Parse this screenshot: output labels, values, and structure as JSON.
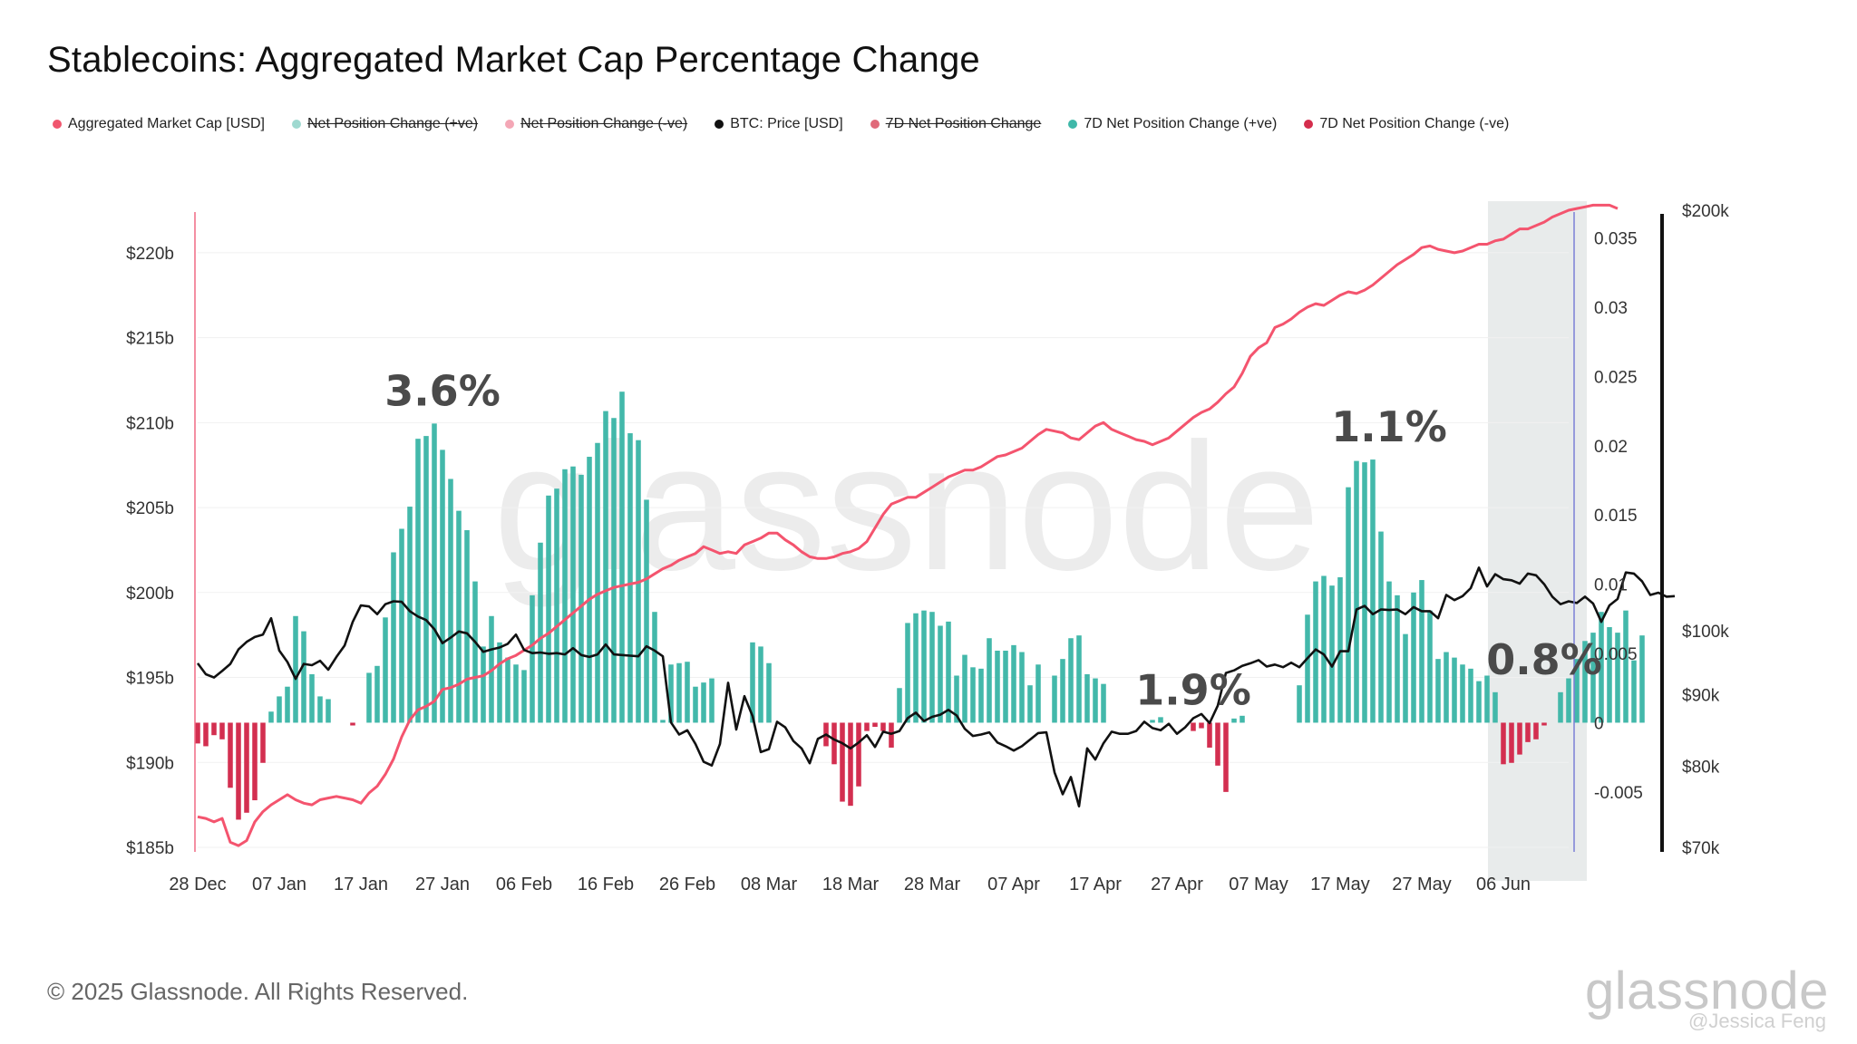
{
  "title": "Stablecoins: Aggregated Market Cap Percentage Change",
  "legend": [
    {
      "label": "Aggregated Market Cap [USD]",
      "color": "#f0566e",
      "active": true
    },
    {
      "label": "Net Position Change (+ve)",
      "color": "#9fd9d0",
      "active": false
    },
    {
      "label": "Net Position Change (-ve)",
      "color": "#f4a7b6",
      "active": false
    },
    {
      "label": "BTC: Price [USD]",
      "color": "#111111",
      "active": true
    },
    {
      "label": "7D Net Position Change",
      "color": "#e06a7a",
      "active": false
    },
    {
      "label": "7D Net Position Change (+ve)",
      "color": "#3fb8a9",
      "active": true
    },
    {
      "label": "7D Net Position Change (-ve)",
      "color": "#d42d4c",
      "active": true
    }
  ],
  "footer": "© 2025 Glassnode. All Rights Reserved.",
  "watermark": "glassnode",
  "brand": "glassnode",
  "credit": "@Jessica Feng",
  "chart_data": {
    "type": "bar",
    "x_ticks": [
      "28 Dec",
      "07 Jan",
      "17 Jan",
      "27 Jan",
      "06 Feb",
      "16 Feb",
      "26 Feb",
      "08 Mar",
      "18 Mar",
      "28 Mar",
      "07 Apr",
      "17 Apr",
      "27 Apr",
      "07 May",
      "17 May",
      "27 May",
      "06 Jun"
    ],
    "x_start": "28 Dec",
    "days": 169,
    "highlight_region": {
      "from": "05 Jun",
      "to": "16 Jun"
    },
    "y_left": {
      "ticks": [
        "$185b",
        "$190b",
        "$195b",
        "$200b",
        "$205b",
        "$210b",
        "$215b",
        "$220b"
      ],
      "range": [
        185,
        222.5
      ],
      "unit": "$b"
    },
    "y_right": {
      "ticks": [
        "0.035",
        "0.03",
        "0.025",
        "0.02",
        "0.015",
        "0.01",
        "0.005",
        "0",
        "-0.005"
      ],
      "range": [
        -0.009,
        0.037
      ]
    },
    "y_btc": {
      "ticks": [
        "$200k",
        "$100k",
        "$90k",
        "$80k",
        "$70k"
      ],
      "range": [
        70000,
        200000
      ],
      "scale": "log"
    },
    "annotations": [
      {
        "text": "3.6%",
        "x": 30
      },
      {
        "text": "1.9%",
        "x": 122
      },
      {
        "text": "1.1%",
        "x": 146
      },
      {
        "text": "0.8%",
        "x": 165
      }
    ],
    "series": [
      {
        "name": "7D Net Position Change",
        "axis": "right",
        "values": [
          -0.0015,
          -0.0017,
          -0.0009,
          -0.0012,
          -0.0047,
          -0.007,
          -0.0065,
          -0.0056,
          -0.0029,
          0.0008,
          0.0019,
          0.0026,
          0.0077,
          0.0066,
          0.0035,
          0.0019,
          0.0017,
          0.0,
          0.0,
          -0.0002,
          0.0,
          0.0036,
          0.0041,
          0.0076,
          0.0123,
          0.014,
          0.0156,
          0.0205,
          0.0207,
          0.0216,
          0.0197,
          0.0176,
          0.0153,
          0.0139,
          0.0102,
          0.0055,
          0.0077,
          0.0058,
          0.0047,
          0.0042,
          0.0038,
          0.0092,
          0.013,
          0.0164,
          0.0169,
          0.0183,
          0.0185,
          0.0179,
          0.0192,
          0.0202,
          0.0225,
          0.022,
          0.0239,
          0.0209,
          0.0204,
          0.0161,
          0.008,
          0.0002,
          0.0042,
          0.0043,
          0.0044,
          0.0026,
          0.0029,
          0.0032,
          0.0,
          0.0,
          0.0,
          0.0,
          0.0058,
          0.0055,
          0.0043,
          0.0,
          0.0,
          0.0,
          0.0,
          0.0,
          0.0,
          -0.0017,
          -0.003,
          -0.0057,
          -0.006,
          -0.0046,
          -0.0006,
          -0.0003,
          -0.0006,
          -0.0018,
          0.0025,
          0.0072,
          0.0079,
          0.0081,
          0.008,
          0.007,
          0.0073,
          0.0034,
          0.0049,
          0.004,
          0.0039,
          0.0061,
          0.0052,
          0.0052,
          0.0056,
          0.0051,
          0.0027,
          0.0042,
          0.0,
          0.0034,
          0.0046,
          0.0061,
          0.0063,
          0.0035,
          0.0032,
          0.0028,
          0.0,
          0.0,
          0.0,
          0.0,
          0.0,
          0.0002,
          0.0004,
          0.0,
          0.0,
          0.0,
          -0.0006,
          -0.0004,
          -0.0018,
          -0.0031,
          -0.005,
          0.0003,
          0.0005,
          0.0,
          0.0,
          0.0,
          0.0,
          0.0,
          0.0,
          0.0027,
          0.0078,
          0.0102,
          0.0106,
          0.0099,
          0.0105,
          0.017,
          0.0189,
          0.0188,
          0.019,
          0.0138,
          0.0102,
          0.0092,
          0.0064,
          0.0094,
          0.0103,
          0.0081,
          0.0046,
          0.0051,
          0.0047,
          0.0042,
          0.0039,
          0.003,
          0.0034,
          0.0022,
          -0.003,
          -0.0029,
          -0.0023,
          -0.0014,
          -0.0012,
          -0.0002,
          0.0,
          0.0022,
          0.0032,
          0.0046,
          0.0059,
          0.0065,
          0.008,
          0.0069,
          0.0065,
          0.0081,
          0.0045,
          0.0063
        ]
      },
      {
        "name": "Aggregated Market Cap [USD]",
        "axis": "left",
        "values": [
          186.8,
          186.7,
          186.5,
          186.7,
          185.3,
          185.1,
          185.4,
          186.5,
          187.1,
          187.5,
          187.8,
          188.1,
          187.8,
          187.6,
          187.5,
          187.8,
          187.9,
          188.0,
          187.9,
          187.8,
          187.6,
          188.2,
          188.6,
          189.3,
          190.2,
          191.5,
          192.5,
          193.1,
          193.3,
          193.6,
          194.3,
          194.4,
          194.6,
          194.9,
          195.0,
          195.1,
          195.4,
          195.8,
          196.1,
          196.3,
          196.6,
          196.9,
          197.3,
          197.6,
          198.0,
          198.4,
          198.8,
          199.2,
          199.6,
          199.9,
          200.1,
          200.3,
          200.4,
          200.5,
          200.6,
          200.8,
          201.1,
          201.4,
          201.6,
          201.9,
          202.1,
          202.3,
          202.7,
          202.5,
          202.3,
          202.4,
          202.3,
          202.8,
          203.0,
          203.2,
          203.5,
          203.5,
          203.1,
          202.8,
          202.4,
          202.1,
          202.0,
          202.0,
          202.1,
          202.3,
          202.4,
          202.6,
          203.0,
          203.8,
          204.6,
          205.2,
          205.4,
          205.6,
          205.6,
          205.9,
          206.2,
          206.5,
          206.8,
          207.0,
          207.2,
          207.2,
          207.4,
          207.7,
          208.0,
          208.1,
          208.3,
          208.5,
          208.9,
          209.3,
          209.6,
          209.5,
          209.4,
          209.1,
          209.0,
          209.4,
          209.8,
          210.0,
          209.6,
          209.4,
          209.2,
          209.0,
          208.9,
          208.7,
          208.9,
          209.1,
          209.5,
          209.9,
          210.3,
          210.6,
          210.8,
          211.2,
          211.7,
          212.1,
          212.9,
          213.9,
          214.4,
          214.7,
          215.6,
          215.8,
          216.1,
          216.5,
          216.8,
          217.0,
          216.9,
          217.2,
          217.5,
          217.7,
          217.6,
          217.8,
          218.1,
          218.5,
          218.9,
          219.3,
          219.6,
          219.9,
          220.3,
          220.4,
          220.2,
          220.1,
          220.0,
          220.1,
          220.3,
          220.5,
          220.5,
          220.7,
          220.8,
          221.1,
          221.4,
          221.4,
          221.6,
          221.8,
          222.1,
          222.3,
          222.5,
          222.6,
          222.7,
          222.8,
          222.8,
          222.8,
          222.6
        ]
      },
      {
        "name": "BTC: Price [USD]",
        "axis": "btc",
        "values": [
          94800,
          93100,
          92600,
          93600,
          94700,
          97000,
          98200,
          99000,
          99400,
          102100,
          96800,
          95000,
          92400,
          94700,
          94500,
          95200,
          93800,
          95800,
          97600,
          101500,
          104300,
          104100,
          102800,
          104500,
          105000,
          104900,
          103300,
          102400,
          101800,
          100300,
          98000,
          98900,
          99900,
          99600,
          98200,
          96600,
          97000,
          97300,
          97900,
          99400,
          96900,
          96400,
          96500,
          96300,
          96400,
          96200,
          97200,
          96100,
          95800,
          96200,
          97800,
          96200,
          96100,
          96000,
          95900,
          97500,
          96800,
          95900,
          86000,
          84300,
          84900,
          83000,
          80600,
          80100,
          83000,
          91800,
          85000,
          89800,
          86900,
          81900,
          82300,
          86100,
          85300,
          83400,
          82400,
          80400,
          83700,
          84300,
          83600,
          83100,
          82400,
          83200,
          84200,
          82600,
          84700,
          84400,
          84800,
          86600,
          87400,
          86200,
          86800,
          87100,
          87800,
          87000,
          85100,
          84100,
          84300,
          84600,
          83200,
          82700,
          82100,
          82700,
          83600,
          84500,
          84600,
          79200,
          76400,
          78600,
          74900,
          82400,
          80900,
          83100,
          84700,
          84400,
          84400,
          84800,
          86100,
          85200,
          84900,
          85800,
          84400,
          85300,
          86600,
          87200,
          85900,
          88400,
          93300,
          93700,
          94400,
          94800,
          95300,
          94300,
          94600,
          94200,
          94900,
          94200,
          95600,
          97000,
          96200,
          94300,
          96700,
          96700,
          103600,
          104200,
          102800,
          103600,
          103500,
          103600,
          102800,
          104000,
          103300,
          103300,
          102100,
          106100,
          105200,
          105900,
          107300,
          111000,
          107600,
          109800,
          108900,
          108700,
          108100,
          109900,
          109600,
          108000,
          105800,
          104500,
          105000,
          104700,
          105800,
          104600,
          101500,
          104300,
          105400,
          110100,
          109900,
          108500,
          106100,
          106500,
          105800,
          105900
        ]
      }
    ]
  }
}
